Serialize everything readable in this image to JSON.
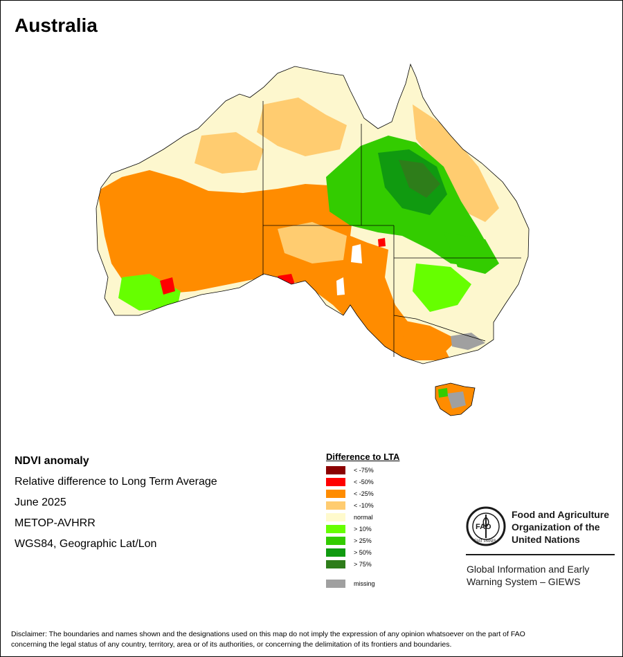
{
  "map": {
    "title": "Australia",
    "colors": {
      "land_base": "#FDF7CE",
      "ocean": "#FFFFFF",
      "boundary": "#000000"
    }
  },
  "metadata": {
    "title": "NDVI anomaly",
    "subtitle": "Relative difference to Long Term Average",
    "date": "June 2025",
    "sensor": "METOP-AVHRR",
    "projection": "WGS84, Geographic Lat/Lon"
  },
  "legend": {
    "title": "Difference to LTA",
    "items": [
      {
        "label": "< -75%",
        "color": "#8B0000"
      },
      {
        "label": "< -50%",
        "color": "#FF0000"
      },
      {
        "label": "< -25%",
        "color": "#FF8C00"
      },
      {
        "label": "< -10%",
        "color": "#FFCC70"
      },
      {
        "label": "normal",
        "color": "#FFFACD"
      },
      {
        "label": "> 10%",
        "color": "#66FF00"
      },
      {
        "label": "> 25%",
        "color": "#33CC00"
      },
      {
        "label": "> 50%",
        "color": "#109A10"
      },
      {
        "label": "> 75%",
        "color": "#2E7D1A"
      },
      {
        "label": "missing",
        "color": "#A0A0A0"
      }
    ]
  },
  "logo": {
    "org_line1": "Food and Agriculture",
    "org_line2": "Organization of the",
    "org_line3": "United Nations",
    "logo_letters": "FAO",
    "logo_motto": "FIAT PANIS",
    "system_line1": "Global Information and Early",
    "system_line2": "Warning System – GIEWS"
  },
  "disclaimer": {
    "line1": "Disclaimer: The boundaries and names shown and the designations used on this map do not imply the expression of any opinion whatsoever on the part of FAO",
    "line2": "concerning the legal status of any country, territory, area or of its authorities, or concerning the delimitation of its frontiers and boundaries."
  }
}
